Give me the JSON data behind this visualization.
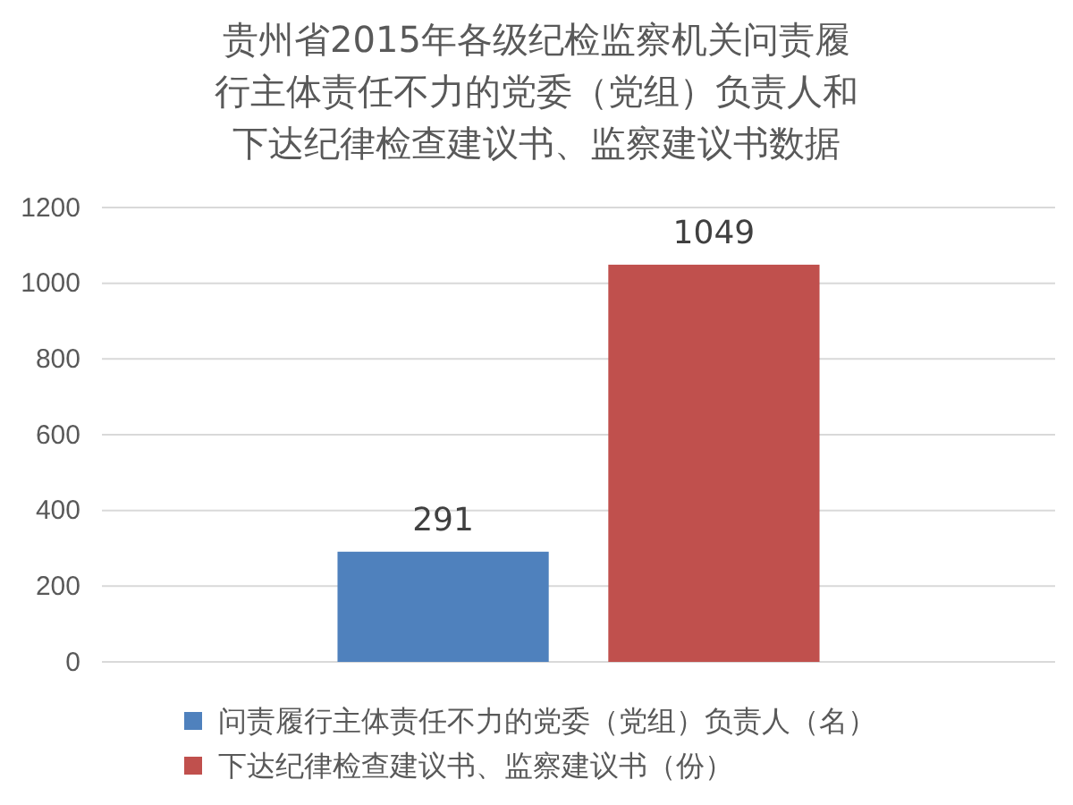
{
  "chart_data": {
    "type": "bar",
    "title": "贵州省2015年各级纪检监察机关问责履行主体责任不力的党委（党组）负责人和下达纪律检查建议书、监察建议书数据",
    "categories": [
      null
    ],
    "series": [
      {
        "name": "问责履行主体责任不力的党委（党组）负责人（名）",
        "color": "#4f81bd",
        "values": [
          291
        ]
      },
      {
        "name": "下达纪律检查建议书、监察建议书（份）",
        "color": "#c0504d",
        "values": [
          1049
        ]
      }
    ],
    "ylim": [
      0,
      1200
    ],
    "yticks": [
      0,
      200,
      400,
      600,
      800,
      1000,
      1200
    ],
    "grid": "y",
    "legend": "bottom",
    "data_labels": true
  }
}
